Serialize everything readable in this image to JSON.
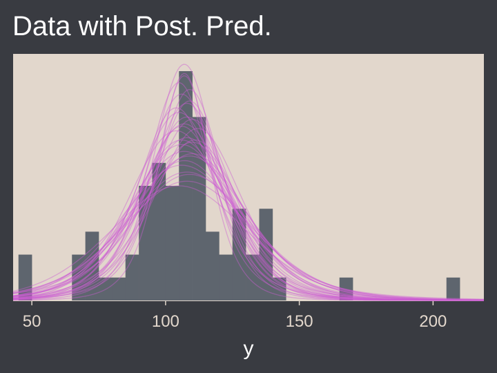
{
  "colors": {
    "background": "#393b41",
    "panel": "#e2d7cc",
    "bars": "#5e656e",
    "curves": "#cc5ed2",
    "text": "#ffffff",
    "tick_text": "#e2d7cc"
  },
  "chart_data": {
    "type": "bar",
    "title": "Data with Post. Pred.",
    "xlabel": "y",
    "ylabel": "",
    "xlim": [
      43,
      219
    ],
    "x_ticks": [
      50,
      100,
      150,
      200
    ],
    "grid": false,
    "histogram": {
      "bin_width": 5,
      "bins": [
        {
          "x0": 45,
          "x1": 50,
          "count": 2
        },
        {
          "x0": 50,
          "x1": 55,
          "count": 0
        },
        {
          "x0": 55,
          "x1": 60,
          "count": 0
        },
        {
          "x0": 60,
          "x1": 65,
          "count": 0
        },
        {
          "x0": 65,
          "x1": 70,
          "count": 2
        },
        {
          "x0": 70,
          "x1": 75,
          "count": 3
        },
        {
          "x0": 75,
          "x1": 80,
          "count": 1
        },
        {
          "x0": 80,
          "x1": 85,
          "count": 1
        },
        {
          "x0": 85,
          "x1": 90,
          "count": 2
        },
        {
          "x0": 90,
          "x1": 95,
          "count": 5
        },
        {
          "x0": 95,
          "x1": 100,
          "count": 6
        },
        {
          "x0": 100,
          "x1": 105,
          "count": 5
        },
        {
          "x0": 105,
          "x1": 110,
          "count": 10
        },
        {
          "x0": 110,
          "x1": 115,
          "count": 8
        },
        {
          "x0": 115,
          "x1": 120,
          "count": 3
        },
        {
          "x0": 120,
          "x1": 125,
          "count": 2
        },
        {
          "x0": 125,
          "x1": 130,
          "count": 4
        },
        {
          "x0": 130,
          "x1": 135,
          "count": 2
        },
        {
          "x0": 135,
          "x1": 140,
          "count": 4
        },
        {
          "x0": 140,
          "x1": 145,
          "count": 1
        },
        {
          "x0": 145,
          "x1": 150,
          "count": 0
        },
        {
          "x0": 150,
          "x1": 155,
          "count": 0
        },
        {
          "x0": 155,
          "x1": 160,
          "count": 0
        },
        {
          "x0": 160,
          "x1": 165,
          "count": 0
        },
        {
          "x0": 165,
          "x1": 170,
          "count": 1
        },
        {
          "x0": 170,
          "x1": 175,
          "count": 0
        },
        {
          "x0": 175,
          "x1": 180,
          "count": 0
        },
        {
          "x0": 180,
          "x1": 185,
          "count": 0
        },
        {
          "x0": 185,
          "x1": 190,
          "count": 0
        },
        {
          "x0": 190,
          "x1": 195,
          "count": 0
        },
        {
          "x0": 195,
          "x1": 200,
          "count": 0
        },
        {
          "x0": 200,
          "x1": 205,
          "count": 0
        },
        {
          "x0": 205,
          "x1": 210,
          "count": 1
        }
      ]
    },
    "posterior_predictive": {
      "distribution": "t",
      "curves": [
        {
          "mu": 107,
          "sigma": 12,
          "nu": 6,
          "peak": 10.3
        },
        {
          "mu": 106,
          "sigma": 14,
          "nu": 8,
          "peak": 9.0
        },
        {
          "mu": 108,
          "sigma": 15,
          "nu": 5,
          "peak": 8.6
        },
        {
          "mu": 105,
          "sigma": 16,
          "nu": 10,
          "peak": 8.2
        },
        {
          "mu": 109,
          "sigma": 14,
          "nu": 4,
          "peak": 8.7
        },
        {
          "mu": 107,
          "sigma": 17,
          "nu": 7,
          "peak": 7.7
        },
        {
          "mu": 110,
          "sigma": 16,
          "nu": 6,
          "peak": 7.9
        },
        {
          "mu": 104,
          "sigma": 18,
          "nu": 12,
          "peak": 7.4
        },
        {
          "mu": 108,
          "sigma": 19,
          "nu": 5,
          "peak": 7.1
        },
        {
          "mu": 106,
          "sigma": 20,
          "nu": 9,
          "peak": 6.8
        },
        {
          "mu": 111,
          "sigma": 18,
          "nu": 4,
          "peak": 7.0
        },
        {
          "mu": 107,
          "sigma": 21,
          "nu": 15,
          "peak": 6.5
        },
        {
          "mu": 105,
          "sigma": 13,
          "nu": 3,
          "peak": 9.5
        },
        {
          "mu": 109,
          "sigma": 22,
          "nu": 8,
          "peak": 6.3
        },
        {
          "mu": 108,
          "sigma": 24,
          "nu": 6,
          "peak": 5.6
        },
        {
          "mu": 106,
          "sigma": 23,
          "nu": 20,
          "peak": 5.9
        },
        {
          "mu": 107,
          "sigma": 11,
          "nu": 3,
          "peak": 9.8
        },
        {
          "mu": 110,
          "sigma": 20,
          "nu": 3,
          "peak": 6.9
        },
        {
          "mu": 104,
          "sigma": 15,
          "nu": 5,
          "peak": 8.4
        },
        {
          "mu": 108,
          "sigma": 25,
          "nu": 10,
          "peak": 5.2
        },
        {
          "mu": 112,
          "sigma": 17,
          "nu": 5,
          "peak": 7.5
        },
        {
          "mu": 106,
          "sigma": 19,
          "nu": 7,
          "peak": 7.0
        },
        {
          "mu": 109,
          "sigma": 13,
          "nu": 4,
          "peak": 9.2
        },
        {
          "mu": 107,
          "sigma": 22,
          "nu": 4,
          "peak": 6.1
        },
        {
          "mu": 105,
          "sigma": 26,
          "nu": 12,
          "peak": 5.0
        },
        {
          "mu": 108,
          "sigma": 16,
          "nu": 9,
          "peak": 8.0
        },
        {
          "mu": 110,
          "sigma": 21,
          "nu": 6,
          "peak": 6.4
        },
        {
          "mu": 106,
          "sigma": 17,
          "nu": 4,
          "peak": 7.6
        },
        {
          "mu": 107,
          "sigma": 10,
          "nu": 5,
          "peak": 9.9
        },
        {
          "mu": 109,
          "sigma": 24,
          "nu": 7,
          "peak": 5.5
        }
      ]
    }
  }
}
